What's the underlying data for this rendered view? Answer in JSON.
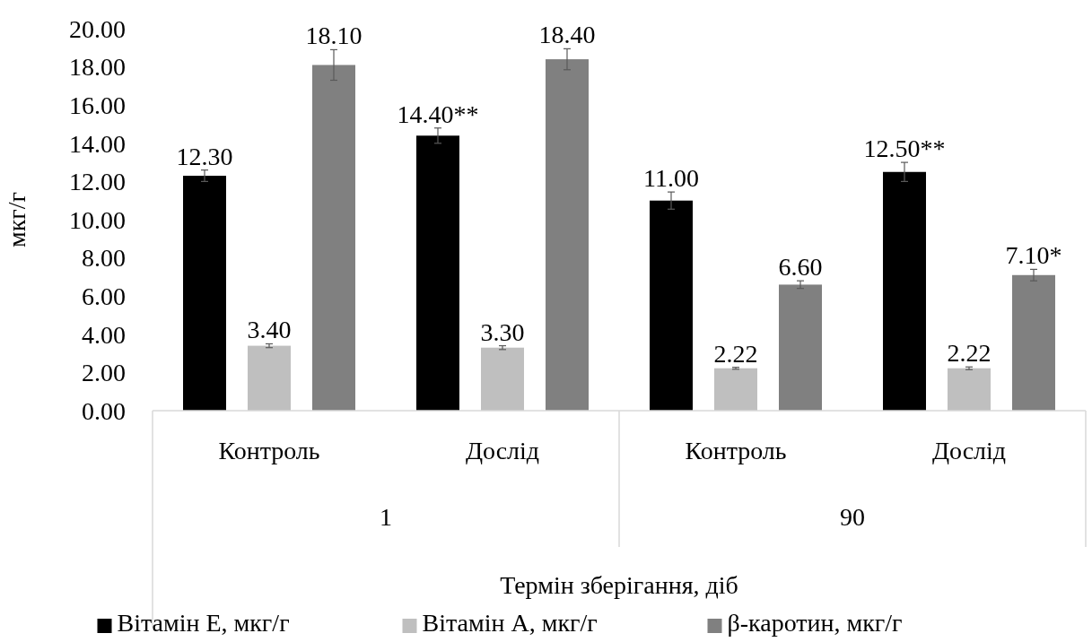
{
  "chart_data": {
    "type": "bar",
    "xlabel": "Термін зберігання, діб",
    "ylabel": "мкг/г",
    "categories": [
      "Контроль",
      "Дослід",
      "Контроль",
      "Дослід"
    ],
    "annotations": [
      "1",
      "90"
    ],
    "ylim": [
      0,
      20
    ],
    "yticks": [
      {
        "value": 0,
        "label": "0.00"
      },
      {
        "value": 2,
        "label": "2.00"
      },
      {
        "value": 4,
        "label": "4.00"
      },
      {
        "value": 6,
        "label": "6.00"
      },
      {
        "value": 8,
        "label": "8.00"
      },
      {
        "value": 10,
        "label": "10.00"
      },
      {
        "value": 12,
        "label": "12.00"
      },
      {
        "value": 14,
        "label": "14.00"
      },
      {
        "value": 16,
        "label": "16.00"
      },
      {
        "value": 18,
        "label": "18.00"
      },
      {
        "value": 20,
        "label": "20.00"
      }
    ],
    "grid": false,
    "legend": "bottom",
    "series": [
      {
        "name": "Вітамін Е, мкг/г",
        "color": "#000000",
        "values": [
          12.3,
          14.4,
          11.0,
          12.5
        ],
        "errors": [
          0.3,
          0.4,
          0.45,
          0.5
        ],
        "value_labels": [
          "12.30",
          "14.40**",
          "11.00",
          "12.50**"
        ]
      },
      {
        "name": "Вітамін А, мкг/г",
        "color": "#bfbfbf",
        "values": [
          3.4,
          3.3,
          2.22,
          2.22
        ],
        "errors": [
          0.1,
          0.1,
          0.05,
          0.07
        ],
        "value_labels": [
          "3.40",
          "3.30",
          "2.22",
          "2.22"
        ]
      },
      {
        "name": "β-каротин, мкг/г",
        "color": "#808080",
        "values": [
          18.1,
          18.4,
          6.6,
          7.1
        ],
        "errors": [
          0.8,
          0.55,
          0.2,
          0.3
        ],
        "value_labels": [
          "18.10",
          "18.40",
          "6.60",
          "7.10*"
        ]
      }
    ]
  }
}
